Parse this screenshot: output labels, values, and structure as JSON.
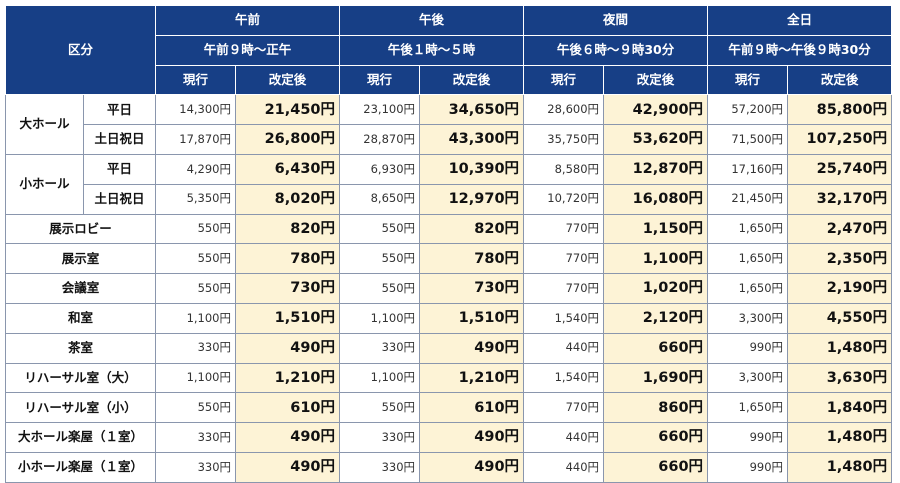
{
  "header": {
    "category_label": "区分",
    "periods": [
      {
        "name": "午前",
        "time": "午前９時～正午"
      },
      {
        "name": "午後",
        "time": "午後１時～５時"
      },
      {
        "name": "夜間",
        "time": "午後６時～９時30分"
      },
      {
        "name": "全日",
        "time": "午前９時～午後９時30分"
      }
    ],
    "current_label": "現行",
    "revised_label": "改定後"
  },
  "groups": [
    {
      "name": "大ホール",
      "rows": [
        {
          "sub": "平日",
          "fees": [
            "14,300円",
            "21,450円",
            "23,100円",
            "34,650円",
            "28,600円",
            "42,900円",
            "57,200円",
            "85,800円"
          ]
        },
        {
          "sub": "土日祝日",
          "fees": [
            "17,870円",
            "26,800円",
            "28,870円",
            "43,300円",
            "35,750円",
            "53,620円",
            "71,500円",
            "107,250円"
          ]
        }
      ]
    },
    {
      "name": "小ホール",
      "rows": [
        {
          "sub": "平日",
          "fees": [
            "4,290円",
            "6,430円",
            "6,930円",
            "10,390円",
            "8,580円",
            "12,870円",
            "17,160円",
            "25,740円"
          ]
        },
        {
          "sub": "土日祝日",
          "fees": [
            "5,350円",
            "8,020円",
            "8,650円",
            "12,970円",
            "10,720円",
            "16,080円",
            "21,450円",
            "32,170円"
          ]
        }
      ]
    }
  ],
  "rooms": [
    {
      "name": "展示ロビー",
      "fees": [
        "550円",
        "820円",
        "550円",
        "820円",
        "770円",
        "1,150円",
        "1,650円",
        "2,470円"
      ]
    },
    {
      "name": "展示室",
      "fees": [
        "550円",
        "780円",
        "550円",
        "780円",
        "770円",
        "1,100円",
        "1,650円",
        "2,350円"
      ]
    },
    {
      "name": "会議室",
      "fees": [
        "550円",
        "730円",
        "550円",
        "730円",
        "770円",
        "1,020円",
        "1,650円",
        "2,190円"
      ]
    },
    {
      "name": "和室",
      "fees": [
        "1,100円",
        "1,510円",
        "1,100円",
        "1,510円",
        "1,540円",
        "2,120円",
        "3,300円",
        "4,550円"
      ]
    },
    {
      "name": "茶室",
      "fees": [
        "330円",
        "490円",
        "330円",
        "490円",
        "440円",
        "660円",
        "990円",
        "1,480円"
      ]
    },
    {
      "name": "リハーサル室（大）",
      "fees": [
        "1,100円",
        "1,210円",
        "1,100円",
        "1,210円",
        "1,540円",
        "1,690円",
        "3,300円",
        "3,630円"
      ]
    },
    {
      "name": "リハーサル室（小）",
      "fees": [
        "550円",
        "610円",
        "550円",
        "610円",
        "770円",
        "860円",
        "1,650円",
        "1,840円"
      ]
    },
    {
      "name": "大ホール楽屋（１室）",
      "fees": [
        "330円",
        "490円",
        "330円",
        "490円",
        "440円",
        "660円",
        "990円",
        "1,480円"
      ]
    },
    {
      "name": "小ホール楽屋（１室）",
      "fees": [
        "330円",
        "490円",
        "330円",
        "490円",
        "440円",
        "660円",
        "990円",
        "1,480円"
      ]
    }
  ]
}
